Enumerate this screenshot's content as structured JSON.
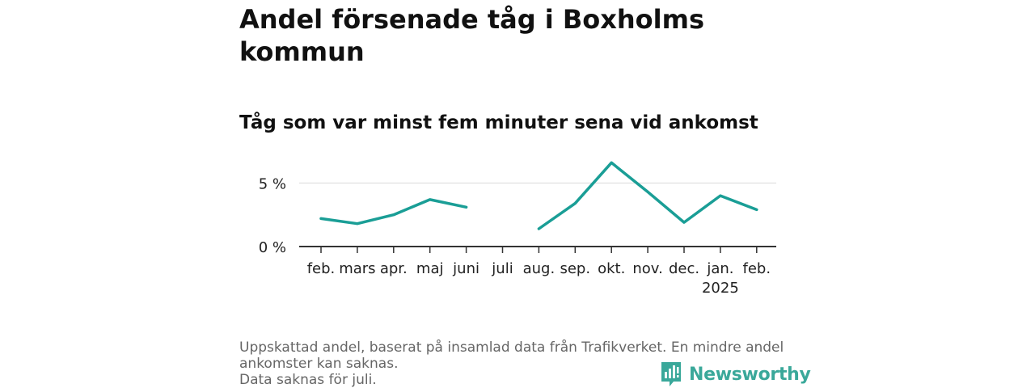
{
  "title": "Andel försenade tåg i Boxholms kommun",
  "subtitle": "Tåg som var minst fem minuter sena vid ankomst",
  "footnote": {
    "line1": "Uppskattad andel, baserat på insamlad data från Trafikverket. En mindre andel ankomster kan saknas.",
    "line2": "Data saknas för juli."
  },
  "brand": {
    "name": "Newsworthy",
    "icon": "newsworthy-logo-icon"
  },
  "colors": {
    "line": "#1a9e96",
    "axis": "#333333",
    "grid": "#dddddd",
    "brand": "#3aa89a"
  },
  "chart_data": {
    "type": "line",
    "categories": [
      "feb.",
      "mars",
      "apr.",
      "maj",
      "juni",
      "juli",
      "aug.",
      "sep.",
      "okt.",
      "nov.",
      "dec.",
      "jan.",
      "feb."
    ],
    "year_labels": {
      "11": "2025"
    },
    "series": [
      {
        "values": [
          2.2,
          1.8,
          2.5,
          3.7,
          3.1,
          null,
          1.4,
          3.4,
          6.6,
          4.3,
          1.9,
          4.0,
          2.9
        ]
      }
    ],
    "yticks": [
      {
        "value": 0,
        "label": "0 %"
      },
      {
        "value": 5,
        "label": "5 %"
      }
    ],
    "ylim": [
      0,
      7
    ],
    "grid": true,
    "xlabel": "",
    "ylabel": ""
  }
}
